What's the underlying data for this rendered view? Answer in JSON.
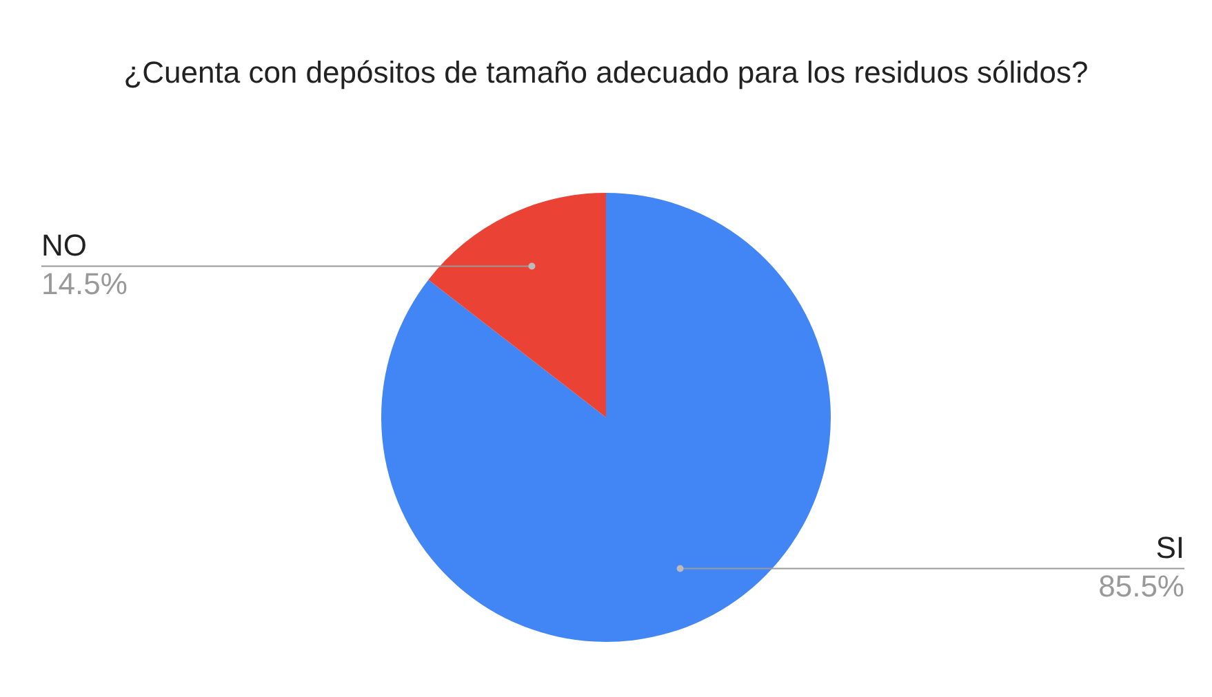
{
  "chart_data": {
    "type": "pie",
    "title": "¿Cuenta con depósitos de tamaño adecuado para los residuos sólidos?",
    "categories": [
      "SI",
      "NO"
    ],
    "values": [
      85.5,
      14.5
    ],
    "colors": [
      "#4285f4",
      "#ea4335"
    ],
    "value_labels": [
      "85.5%",
      "14.5%"
    ],
    "legend": false
  }
}
